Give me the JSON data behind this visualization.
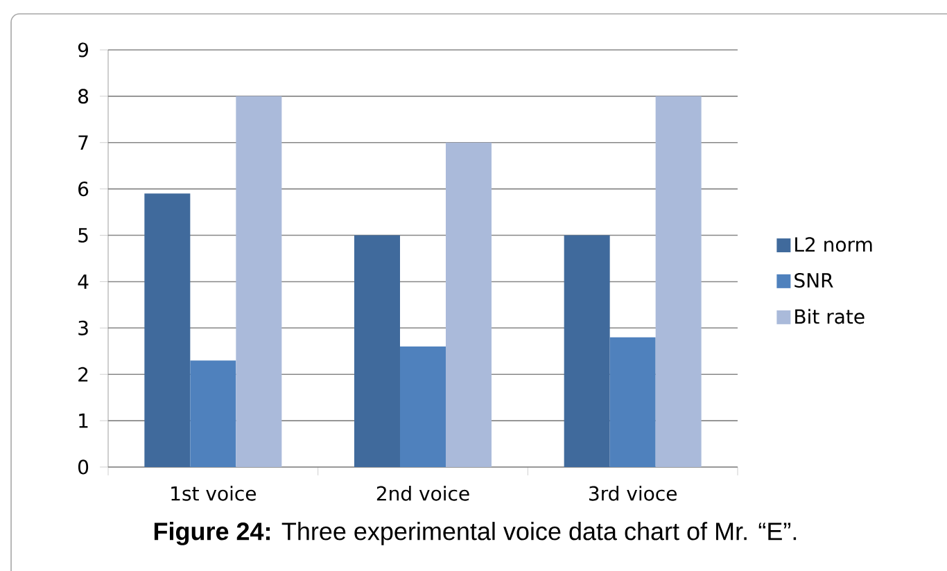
{
  "chart_data": {
    "type": "bar",
    "categories": [
      "1st voice",
      "2nd voice",
      "3rd vioce"
    ],
    "series": [
      {
        "name": "L2 norm",
        "color": "#406a9c",
        "values": [
          5.9,
          5.0,
          5.0
        ]
      },
      {
        "name": "SNR",
        "color": "#4f81bd",
        "values": [
          2.3,
          2.6,
          2.8
        ]
      },
      {
        "name": "Bit rate",
        "color": "#aabada",
        "values": [
          8,
          7,
          8
        ]
      }
    ],
    "ylim": [
      0,
      9
    ],
    "yticks": [
      0,
      1,
      2,
      3,
      4,
      5,
      6,
      7,
      8,
      9
    ],
    "grid": "y",
    "legend": "right",
    "annotations": [
      "**Figure 24:** Three experimental voice data chart of Mr. “E”."
    ]
  }
}
